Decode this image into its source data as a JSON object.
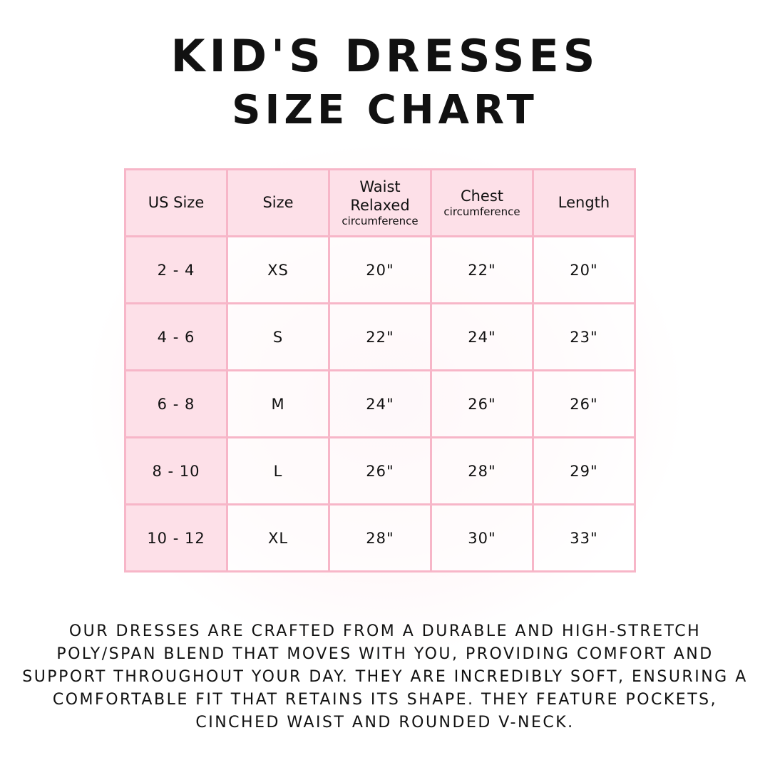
{
  "title": {
    "line1": "Kid's Dresses",
    "line2": "Size Chart"
  },
  "colors": {
    "header_bg": "#fde0e8",
    "border": "#f7b6c8"
  },
  "table": {
    "headers": [
      {
        "main": "US Size",
        "sub": ""
      },
      {
        "main": "Size",
        "sub": ""
      },
      {
        "main": "Waist Relaxed",
        "sub": "circumference"
      },
      {
        "main": "Chest",
        "sub": "circumference"
      },
      {
        "main": "Length",
        "sub": ""
      }
    ],
    "rows": [
      [
        "2 - 4",
        "XS",
        "20\"",
        "22\"",
        "20\""
      ],
      [
        "4 - 6",
        "S",
        "22\"",
        "24\"",
        "23\""
      ],
      [
        "6 - 8",
        "M",
        "24\"",
        "26\"",
        "26\""
      ],
      [
        "8 - 10",
        "L",
        "26\"",
        "28\"",
        "29\""
      ],
      [
        "10 - 12",
        "XL",
        "28\"",
        "30\"",
        "33\""
      ]
    ]
  },
  "description": "Our dresses are crafted from a durable and high-stretch poly/span blend that moves with you, providing comfort and support throughout your day. They are incredibly soft, ensuring a comfortable fit that retains its shape. They feature pockets, cinched waist and rounded v-neck."
}
